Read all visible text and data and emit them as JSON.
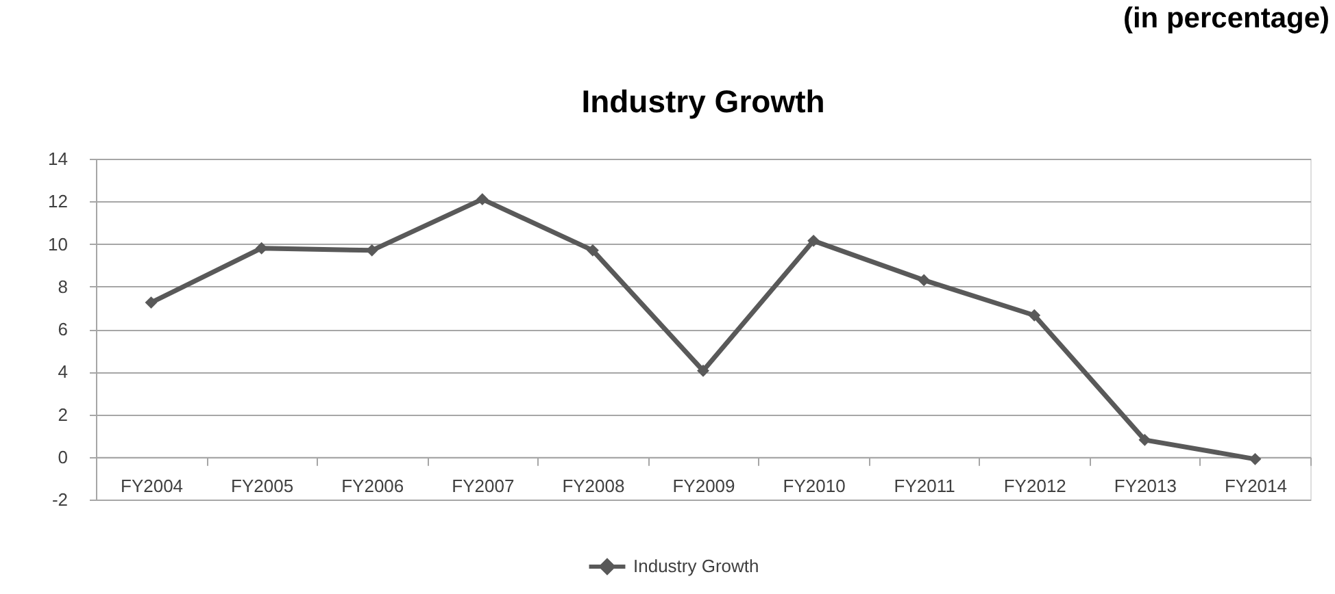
{
  "chart_data": {
    "type": "line",
    "title": "Industry Growth",
    "annotations": [
      "(in percentage)"
    ],
    "categories": [
      "FY2004",
      "FY2005",
      "FY2006",
      "FY2007",
      "FY2008",
      "FY2009",
      "FY2010",
      "FY2011",
      "FY2012",
      "FY2013",
      "FY2014"
    ],
    "series": [
      {
        "name": "Industry Growth",
        "color": "#595959",
        "values": [
          7.25,
          9.8,
          9.7,
          12.1,
          9.7,
          4.05,
          10.15,
          8.3,
          6.65,
          0.8,
          -0.1
        ]
      }
    ],
    "ylim": [
      -2,
      14
    ],
    "yticks": [
      -2,
      0,
      2,
      4,
      6,
      8,
      10,
      12,
      14
    ],
    "grid": "y",
    "legend": "bottom",
    "marker": "diamond",
    "line_style": "solid"
  }
}
